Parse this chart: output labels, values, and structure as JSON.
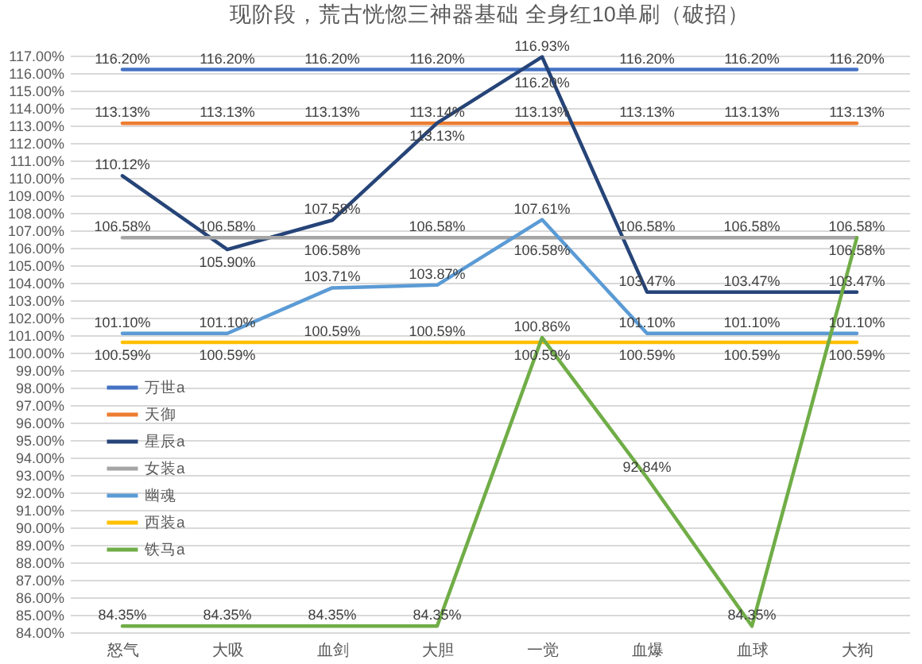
{
  "chart_data": {
    "type": "line",
    "title": "现阶段，荒古恍惚三神器基础 全身红10单刷（破招）",
    "categories": [
      "怒气",
      "大吸",
      "血剑",
      "大胆",
      "一觉",
      "血爆",
      "血球",
      "大狗"
    ],
    "series": [
      {
        "name": "万世a",
        "color": "#4472c4",
        "values": [
          116.2,
          116.2,
          116.2,
          116.2,
          116.2,
          116.2,
          116.2,
          116.2
        ],
        "value_labels": [
          "116.20%",
          "116.20%",
          "116.20%",
          "116.20%",
          "116.20%",
          "116.20%",
          "116.20%",
          "116.20%"
        ]
      },
      {
        "name": "天御",
        "color": "#ed7d31",
        "values": [
          113.13,
          113.13,
          113.13,
          113.13,
          113.13,
          113.13,
          113.13,
          113.13
        ],
        "value_labels": [
          "113.13%",
          "113.13%",
          "113.13%",
          "113.13%",
          "113.13%",
          "113.13%",
          "113.13%",
          "113.13%"
        ]
      },
      {
        "name": "星辰a",
        "color": "#264478",
        "values": [
          110.12,
          105.9,
          107.58,
          113.14,
          116.93,
          103.47,
          103.47,
          103.47
        ],
        "value_labels": [
          "110.12%",
          "105.90%",
          "107.58%",
          "113.14%",
          "116.93%",
          "103.47%",
          "103.47%",
          "103.47%"
        ]
      },
      {
        "name": "女装a",
        "color": "#a5a5a5",
        "values": [
          106.58,
          106.58,
          106.58,
          106.58,
          106.58,
          106.58,
          106.58,
          106.58
        ],
        "value_labels": [
          "106.58%",
          "106.58%",
          "106.58%",
          "106.58%",
          "106.58%",
          "106.58%",
          "106.58%",
          "106.58%"
        ]
      },
      {
        "name": "幽魂",
        "color": "#5b9bd5",
        "values": [
          101.1,
          101.1,
          103.71,
          103.87,
          107.61,
          101.1,
          101.1,
          101.1
        ],
        "value_labels": [
          "101.10%",
          "101.10%",
          "103.71%",
          "103.87%",
          "107.61%",
          "101.10%",
          "101.10%",
          "101.10%"
        ]
      },
      {
        "name": "西装a",
        "color": "#ffc000",
        "values": [
          100.59,
          100.59,
          100.59,
          100.59,
          100.59,
          100.59,
          100.59,
          100.59
        ],
        "value_labels": [
          "100.59%",
          "100.59%",
          "100.59%",
          "100.59%",
          "100.59%",
          "100.59%",
          "100.59%",
          "100.59%"
        ]
      },
      {
        "name": "铁马a",
        "color": "#70ad47",
        "values": [
          84.35,
          84.35,
          84.35,
          84.35,
          100.86,
          92.84,
          84.35,
          106.58
        ],
        "value_labels": [
          "84.35%",
          "84.35%",
          "84.35%",
          "84.35%",
          "100.86%",
          "92.84%",
          "84.35%",
          "106.58%"
        ]
      }
    ],
    "ylim": [
      84,
      117
    ],
    "yticks": [
      {
        "value": 84,
        "label": "84.00%"
      },
      {
        "value": 85,
        "label": "85.00%"
      },
      {
        "value": 86,
        "label": "86.00%"
      },
      {
        "value": 87,
        "label": "87.00%"
      },
      {
        "value": 88,
        "label": "88.00%"
      },
      {
        "value": 89,
        "label": "89.00%"
      },
      {
        "value": 90,
        "label": "90.00%"
      },
      {
        "value": 91,
        "label": "91.00%"
      },
      {
        "value": 92,
        "label": "92.00%"
      },
      {
        "value": 93,
        "label": "93.00%"
      },
      {
        "value": 94,
        "label": "94.00%"
      },
      {
        "value": 95,
        "label": "95.00%"
      },
      {
        "value": 96,
        "label": "96.00%"
      },
      {
        "value": 97,
        "label": "97.00%"
      },
      {
        "value": 98,
        "label": "98.00%"
      },
      {
        "value": 99,
        "label": "99.00%"
      },
      {
        "value": 100,
        "label": "100.00%"
      },
      {
        "value": 101,
        "label": "101.00%"
      },
      {
        "value": 102,
        "label": "102.00%"
      },
      {
        "value": 103,
        "label": "103.00%"
      },
      {
        "value": 104,
        "label": "104.00%"
      },
      {
        "value": 105,
        "label": "105.00%"
      },
      {
        "value": 106,
        "label": "106.00%"
      },
      {
        "value": 107,
        "label": "107.00%"
      },
      {
        "value": 108,
        "label": "108.00%"
      },
      {
        "value": 109,
        "label": "109.00%"
      },
      {
        "value": 110,
        "label": "110.00%"
      },
      {
        "value": 111,
        "label": "111.00%"
      },
      {
        "value": 112,
        "label": "112.00%"
      },
      {
        "value": 113,
        "label": "113.00%"
      },
      {
        "value": 114,
        "label": "114.00%"
      },
      {
        "value": 115,
        "label": "115.00%"
      },
      {
        "value": 116,
        "label": "116.00%"
      },
      {
        "value": 117,
        "label": "117.00%"
      }
    ],
    "grid": "y",
    "legend": "left"
  }
}
